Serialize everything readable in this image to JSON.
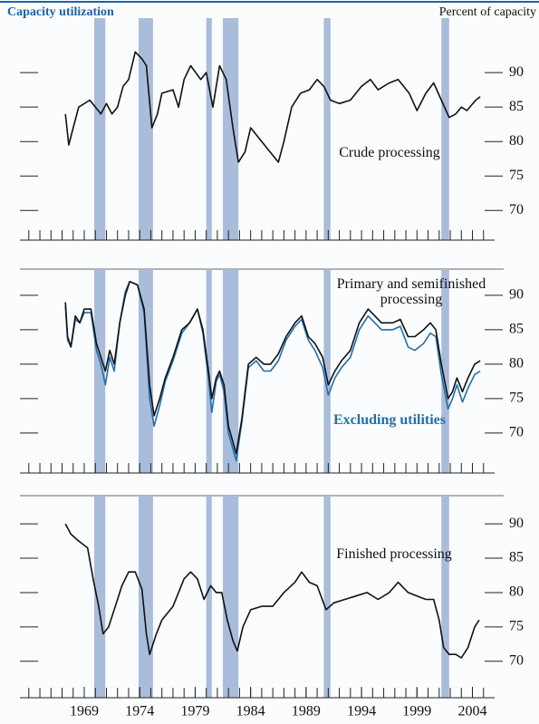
{
  "chart_data": {
    "type": "line",
    "title": "Capacity utilization",
    "ylabel": "Percent of capacity",
    "xlim": [
      1963.2,
      2006
    ],
    "xticks": [
      1969,
      1974,
      1979,
      1984,
      1989,
      1994,
      1999,
      2004
    ],
    "xminor": [
      1964,
      1965,
      1966,
      1967,
      1968,
      1969,
      1970,
      1971,
      1972,
      1973,
      1974,
      1975,
      1976,
      1977,
      1978,
      1979,
      1980,
      1981,
      1982,
      1983,
      1984,
      1985,
      1986,
      1987,
      1988,
      1989,
      1990,
      1991,
      1992,
      1993,
      1994,
      1995,
      1996,
      1997,
      1998,
      1999,
      2000,
      2001,
      2002,
      2003,
      2004,
      2005
    ],
    "recession_color": "#a9bcda",
    "recessions": [
      [
        1969.9,
        1970.9
      ],
      [
        1973.9,
        1975.2
      ],
      [
        1980.0,
        1980.5
      ],
      [
        1981.5,
        1982.9
      ],
      [
        1990.6,
        1991.2
      ],
      [
        2001.2,
        2001.9
      ]
    ],
    "panels": [
      {
        "ylim": [
          65.7,
          97.9
        ],
        "yticks": [
          70,
          75,
          80,
          85,
          90
        ],
        "series": [
          {
            "name": "Crude processing",
            "color": "#111111",
            "x": [
              1967.3,
              1967.6,
              1968,
              1968.5,
              1969.5,
              1970.5,
              1971,
              1971.5,
              1972,
              1972.5,
              1973,
              1973.6,
              1974.2,
              1974.6,
              1975.1,
              1975.6,
              1976,
              1977,
              1977.5,
              1978,
              1978.6,
              1979.5,
              1980,
              1980.6,
              1981.2,
              1981.8,
              1982.4,
              1982.9,
              1983.5,
              1984,
              1985,
              1986.5,
              1987,
              1987.7,
              1988.5,
              1989.3,
              1990,
              1990.6,
              1991.2,
              1992,
              1993,
              1994,
              1994.8,
              1995.5,
              1996.5,
              1997.3,
              1998.3,
              1999,
              1999.8,
              2000.5,
              2001.2,
              2001.9,
              2002.5,
              2003,
              2003.5,
              2004.3,
              2004.7
            ],
            "values": [
              84,
              79.5,
              82,
              85,
              86,
              84,
              85.5,
              84,
              85,
              88,
              89,
              93,
              92,
              91,
              82,
              84,
              87,
              87.5,
              85,
              89,
              91,
              89,
              90,
              85,
              91,
              89,
              82,
              77,
              78.5,
              82,
              80,
              77,
              80,
              85,
              87,
              87.5,
              89,
              88,
              86,
              85.5,
              86,
              88,
              89,
              87.5,
              88.5,
              89,
              87,
              84.5,
              87,
              88.5,
              86,
              83.5,
              84,
              85,
              84.5,
              86,
              86.5
            ]
          }
        ]
      },
      {
        "ylim": [
          64.2,
          93.8
        ],
        "yticks": [
          70,
          75,
          80,
          85,
          90
        ],
        "series": [
          {
            "name": "Excluding utilities",
            "color": "#1f6fb0",
            "x": [
              1967.3,
              1967.5,
              1967.8,
              1968.2,
              1968.6,
              1969,
              1969.6,
              1970.1,
              1970.5,
              1970.9,
              1971.3,
              1971.7,
              1972.2,
              1972.7,
              1973.1,
              1973.8,
              1974.4,
              1974.9,
              1975.3,
              1975.8,
              1976.3,
              1977,
              1977.8,
              1978.5,
              1979.2,
              1979.7,
              1980.2,
              1980.5,
              1980.9,
              1981.2,
              1981.6,
              1982,
              1982.7,
              1983.2,
              1983.8,
              1984.5,
              1985.2,
              1985.8,
              1986.5,
              1987.2,
              1988,
              1988.6,
              1989.2,
              1989.8,
              1990.5,
              1991,
              1991.6,
              1992.2,
              1993,
              1993.8,
              1994.6,
              1995.2,
              1995.8,
              1996.8,
              1997.5,
              1998.2,
              1998.8,
              1999.6,
              2000.2,
              2000.7,
              2001.2,
              2001.8,
              2002.2,
              2002.6,
              2003.1,
              2003.6,
              2004.2,
              2004.7
            ],
            "values": [
              88.5,
              83.5,
              82.5,
              86.5,
              86,
              87.5,
              87.5,
              82,
              80,
              77,
              81,
              79,
              86,
              90.5,
              92,
              91.5,
              87.5,
              75,
              71,
              74,
              77.5,
              80.5,
              84.5,
              86,
              88,
              84.5,
              78,
              73,
              77.5,
              78.5,
              76,
              70,
              66,
              71.5,
              79.5,
              80.5,
              79,
              79,
              80.5,
              83.5,
              85.5,
              86.5,
              83.5,
              82,
              79.5,
              75.5,
              78,
              79.5,
              81,
              85,
              87,
              86,
              85,
              85,
              85.5,
              82.5,
              82,
              83,
              84.5,
              84,
              78.5,
              73.5,
              75,
              77,
              74.5,
              76.5,
              78.5,
              79
            ]
          },
          {
            "name": "Primary and semifinished processing",
            "color": "#111111",
            "x": [
              1967.3,
              1967.5,
              1967.8,
              1968.2,
              1968.6,
              1969,
              1969.6,
              1970.1,
              1970.5,
              1970.9,
              1971.3,
              1971.7,
              1972.2,
              1972.7,
              1973.1,
              1973.8,
              1974.4,
              1974.9,
              1975.3,
              1975.8,
              1976.3,
              1977,
              1977.8,
              1978.5,
              1979.2,
              1979.7,
              1980.2,
              1980.5,
              1980.9,
              1981.2,
              1981.6,
              1982,
              1982.7,
              1983.2,
              1983.8,
              1984.5,
              1985.2,
              1985.8,
              1986.5,
              1987.2,
              1988,
              1988.6,
              1989.2,
              1989.8,
              1990.5,
              1991,
              1991.6,
              1992.2,
              1993,
              1993.8,
              1994.6,
              1995.2,
              1995.8,
              1996.8,
              1997.5,
              1998.2,
              1998.8,
              1999.6,
              2000.2,
              2000.7,
              2001.2,
              2001.8,
              2002.2,
              2002.6,
              2003.1,
              2003.6,
              2004.2,
              2004.7
            ],
            "values": [
              89,
              84,
              82.5,
              87,
              86,
              88,
              88,
              83,
              81,
              79,
              82,
              80,
              86,
              90,
              92,
              91.5,
              88,
              77,
              72.5,
              75,
              78,
              81,
              85,
              86,
              88,
              85,
              79,
              75,
              78,
              79,
              77,
              71,
              67,
              72,
              80,
              81,
              80,
              80,
              81.5,
              84,
              86,
              87,
              84,
              83,
              81,
              77,
              79,
              80.5,
              82,
              86,
              88,
              87,
              86,
              86,
              86.5,
              84,
              84,
              85,
              86,
              85,
              80,
              75,
              76,
              78,
              76,
              78,
              80,
              80.5
            ]
          }
        ]
      },
      {
        "ylim": [
          64.7,
          94.1
        ],
        "yticks": [
          70,
          75,
          80,
          85,
          90
        ],
        "series": [
          {
            "name": "Finished processing",
            "color": "#111111",
            "x": [
              1967.3,
              1967.8,
              1968.5,
              1969.3,
              1969.8,
              1970.3,
              1970.7,
              1971.2,
              1971.8,
              1972.4,
              1973,
              1973.6,
              1974.2,
              1974.6,
              1974.9,
              1975.5,
              1976,
              1977,
              1978,
              1978.6,
              1979.2,
              1979.8,
              1980.4,
              1980.9,
              1981.4,
              1981.9,
              1982.4,
              1982.8,
              1983.3,
              1984,
              1985,
              1986,
              1987,
              1988,
              1988.6,
              1989.3,
              1990,
              1990.8,
              1991.5,
              1992.5,
              1993.5,
              1994.5,
              1995.5,
              1996.5,
              1997.3,
              1998.2,
              1999,
              1999.8,
              2000.5,
              2001,
              2001.4,
              2001.9,
              2002.5,
              2003,
              2003.6,
              2004.2,
              2004.6
            ],
            "values": [
              90,
              88.5,
              87.5,
              86.5,
              82,
              78,
              74,
              75,
              78,
              81,
              83,
              83,
              80.5,
              74,
              71,
              74,
              76,
              78,
              82,
              83,
              82,
              79,
              81,
              80,
              80,
              76,
              73,
              71.5,
              75,
              77.5,
              78,
              78,
              80,
              81.5,
              83,
              81.5,
              81,
              77.5,
              78.5,
              79,
              79.5,
              80,
              79,
              80,
              81.5,
              80,
              79.5,
              79,
              79,
              76,
              72,
              71,
              71,
              70.5,
              72,
              75,
              76
            ]
          }
        ]
      }
    ]
  }
}
